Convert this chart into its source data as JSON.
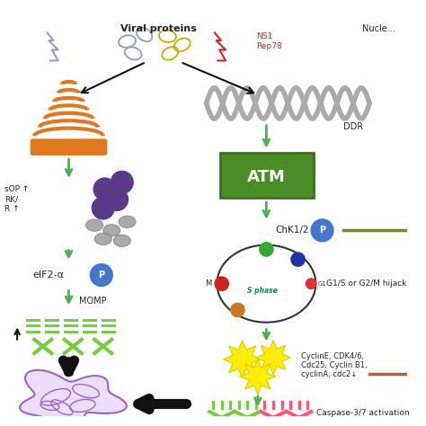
{
  "bg_color": "#ffffff",
  "green_arrow_color": "#4caf50",
  "dark_green_box_color": "#3a7020",
  "green_box_color": "#4a8c25",
  "black_arrow_color": "#111111",
  "orange_color": "#e07820",
  "purple_color": "#5b3a8a",
  "red_text_color": "#cc2222",
  "gray_dna_color": "#aaaaaa",
  "yellow_color": "#ffee00",
  "pink_color": "#ff6699",
  "light_green_color": "#77cc44",
  "blue_circle_color": "#4477cc",
  "text_color": "#222222",
  "brown_color": "#aa6633",
  "teal_color": "#008866",
  "viral_prot_label": "Viral proteins",
  "nucle_label": "Nucle...",
  "ns1_label": "NS1\nRep78",
  "ddr_label": "DDR",
  "atm_label": "ATM",
  "chk_label": "ChK1/2",
  "g1s_label": "G1/S or G2/M hijack",
  "cyclin_label": "CyclinE, CDK4/6,\nCdc25, Cyclin B1,\ncyclinA, cdc2↓",
  "casp_label": "Caspase-3/7 activation",
  "eif_label": "eIF2-α",
  "momp_label": "MOMP",
  "sop_label": "sOP ↑",
  "rk_label": "RK/\nR ↑"
}
